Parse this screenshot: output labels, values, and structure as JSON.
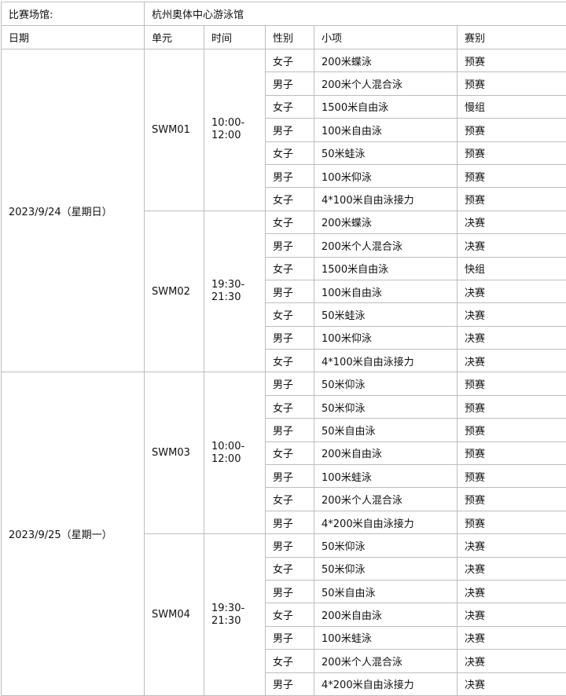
{
  "venue_label": "比赛场馆:",
  "venue": "杭州奥体中心游泳馆",
  "headers": [
    "日期",
    "单元",
    "时间",
    "性别",
    "小项",
    "赛别"
  ],
  "days": [
    {
      "date": "2023/9/24（星期日）",
      "sessions": [
        {
          "unit": "SWM01",
          "time": "10:00-\n12:00",
          "events": [
            [
              "女子",
              "200米蝶泳",
              "预赛"
            ],
            [
              "男子",
              "200米个人混合泳",
              "预赛"
            ],
            [
              "女子",
              "1500米自由泳",
              "慢组"
            ],
            [
              "男子",
              "100米自由泳",
              "预赛"
            ],
            [
              "女子",
              "50米蛙泳",
              "预赛"
            ],
            [
              "男子",
              "100米仰泳",
              "预赛"
            ],
            [
              "女子",
              "4*100米自由泳接力",
              "预赛"
            ]
          ]
        },
        {
          "unit": "SWM02",
          "time": "19:30-\n21:30",
          "events": [
            [
              "女子",
              "200米蝶泳",
              "决赛"
            ],
            [
              "男子",
              "200米个人混合泳",
              "决赛"
            ],
            [
              "女子",
              "1500米自由泳",
              "快组"
            ],
            [
              "男子",
              "100米自由泳",
              "决赛"
            ],
            [
              "女子",
              "50米蛙泳",
              "决赛"
            ],
            [
              "男子",
              "100米仰泳",
              "决赛"
            ],
            [
              "女子",
              "4*100米自由泳接力",
              "决赛"
            ]
          ]
        }
      ]
    },
    {
      "date": "2023/9/25（星期一）",
      "sessions": [
        {
          "unit": "SWM03",
          "time": "10:00-\n12:00",
          "events": [
            [
              "男子",
              "50米仰泳",
              "预赛"
            ],
            [
              "女子",
              "50米仰泳",
              "预赛"
            ],
            [
              "男子",
              "50米自由泳",
              "预赛"
            ],
            [
              "女子",
              "200米自由泳",
              "预赛"
            ],
            [
              "男子",
              "100米蛙泳",
              "预赛"
            ],
            [
              "女子",
              "200米个人混合泳",
              "预赛"
            ],
            [
              "男子",
              "4*200米自由泳接力",
              "预赛"
            ]
          ]
        },
        {
          "unit": "SWM04",
          "time": "19:30-\n21:30",
          "events": [
            [
              "男子",
              "50米仰泳",
              "决赛"
            ],
            [
              "女子",
              "50米仰泳",
              "决赛"
            ],
            [
              "男子",
              "50米自由泳",
              "决赛"
            ],
            [
              "女子",
              "200米自由泳",
              "决赛"
            ],
            [
              "男子",
              "100米蛙泳",
              "决赛"
            ],
            [
              "女子",
              "200米个人混合泳",
              "决赛"
            ],
            [
              "男子",
              "4*200米自由泳接力",
              "决赛"
            ]
          ]
        }
      ]
    }
  ]
}
